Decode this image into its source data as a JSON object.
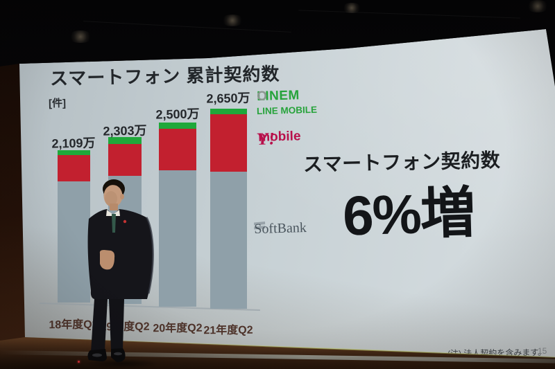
{
  "slide": {
    "title": "スマートフォン 累計契約数",
    "unit_label": "[件]",
    "headline": "スマートフォン契約数",
    "headline_emphasis": "6%増",
    "footnote": "(注) 法人契約を含みます。",
    "page_number": "15",
    "logos": {
      "linemo_prefix": "LINEM",
      "linemo_o": "O",
      "line_mobile": "LINE MOBILE",
      "ymobile_mark": "Y!",
      "ymobile_text": "mobile",
      "softbank": "SoftBank"
    },
    "colors": {
      "bar_softbank": "#8fa0a9",
      "bar_ymobile": "#c2202f",
      "bar_linemo": "#1fa83a",
      "linemo_green": "#27a33b",
      "ymobile_red": "#b8104b",
      "softbank_gray": "#4b565e",
      "text_dark": "#1b1e21"
    }
  },
  "chart_data": {
    "type": "bar",
    "stacked": true,
    "title": "スマートフォン 累計契約数",
    "unit": "万件",
    "categories": [
      "18年度Q2",
      "19年度Q2",
      "20年度Q2",
      "21年度Q2"
    ],
    "total_labels": [
      "2,109万",
      "2,303万",
      "2,500万",
      "2,650万"
    ],
    "totals": [
      2109,
      2303,
      2500,
      2650
    ],
    "segments_estimated": true,
    "series": [
      {
        "name": "SoftBank",
        "color": "#8fa0a9",
        "values": [
          1680,
          1770,
          1852,
          1812
        ]
      },
      {
        "name": "Y!mobile",
        "color": "#c2202f",
        "values": [
          362,
          438,
          562,
          762
        ]
      },
      {
        "name": "LINEMO / LINE MOBILE",
        "color": "#1fa83a",
        "values": [
          67,
          95,
          86,
          76
        ]
      }
    ],
    "ylim": [
      0,
      2800
    ],
    "gridlines": false,
    "legend": "brand logos shown right of bars"
  }
}
